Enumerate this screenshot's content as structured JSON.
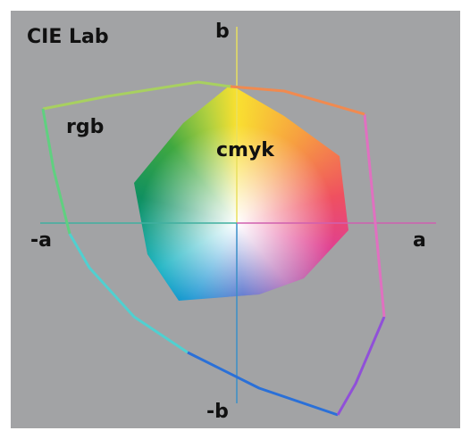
{
  "title": "CIE Lab",
  "axes": {
    "b": "b",
    "minus_b": "-b",
    "a": "a",
    "minus_a": "-a"
  },
  "gamuts": {
    "rgb": "rgb",
    "cmyk": "cmyk"
  }
}
